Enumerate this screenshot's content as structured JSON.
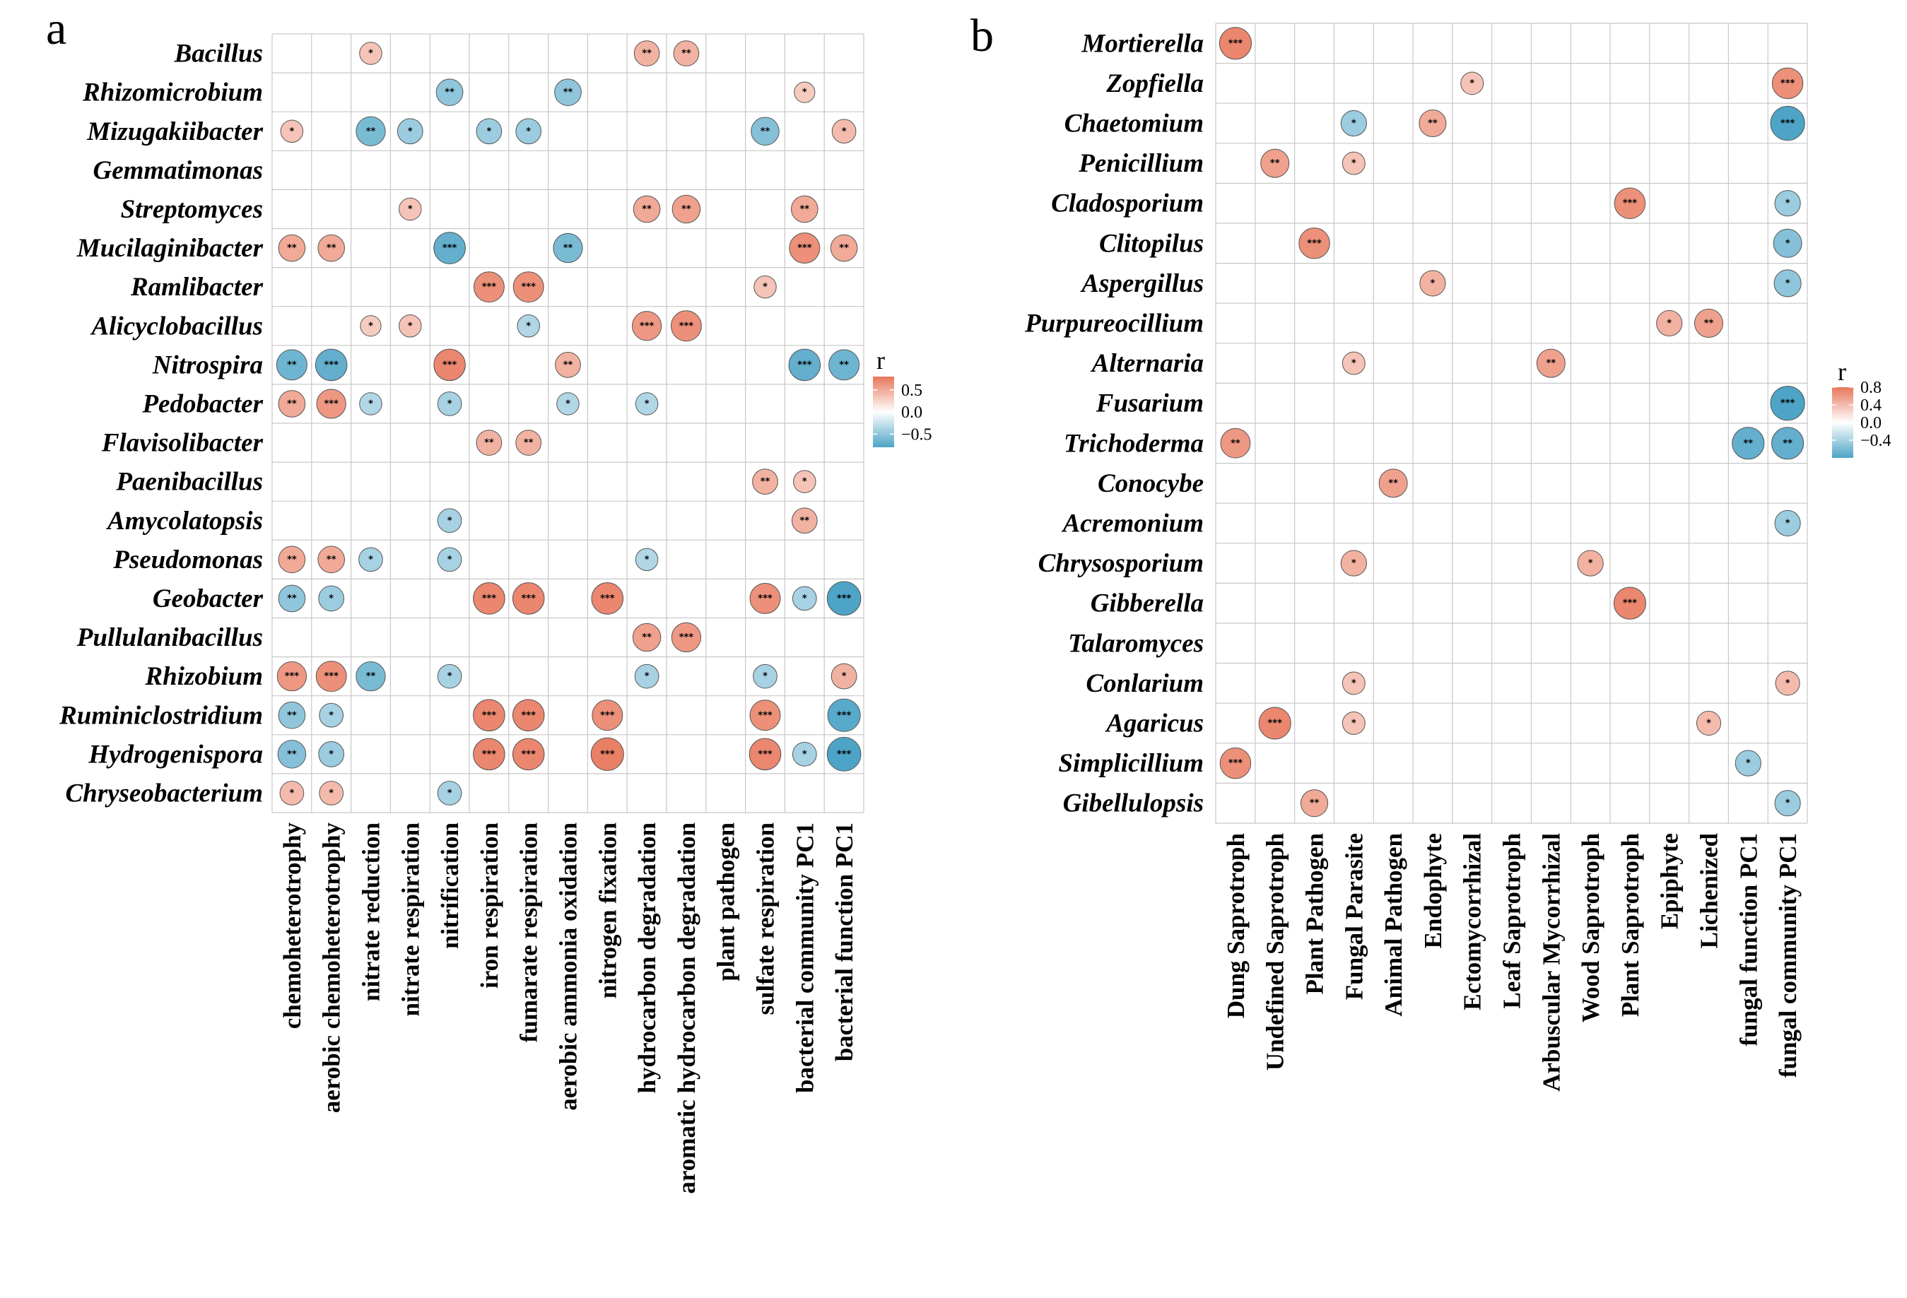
{
  "chart_data": [
    {
      "type": "heatmap",
      "panel": "a",
      "legend_title": "r",
      "color_scale": {
        "min": -0.8,
        "max": 0.8,
        "low": "#4da4c6",
        "mid": "#ffffff",
        "high": "#e8765a"
      },
      "legend_ticks": [
        {
          "value": 0.5,
          "label": "0.5"
        },
        {
          "value": 0.0,
          "label": "0.0"
        },
        {
          "value": -0.5,
          "label": "−0.5"
        }
      ],
      "rows": [
        "Bacillus",
        "Rhizomicrobium",
        "Mizugakiibacter",
        "Gemmatimonas",
        "Streptomyces",
        "Mucilaginibacter",
        "Ramlibacter",
        "Alicyclobacillus",
        "Nitrospira",
        "Pedobacter",
        "Flavisolibacter",
        "Paenibacillus",
        "Amycolatopsis",
        "Pseudomonas",
        "Geobacter",
        "Pullulanibacillus",
        "Rhizobium",
        "Ruminiclostridium",
        "Hydrogenispora",
        "Chryseobacterium"
      ],
      "columns": [
        "chemoheterotrophy",
        "aerobic chemoheterotrophy",
        "nitrate reduction",
        "nitrate respiration",
        "nitrification",
        "iron respiration",
        "fumarate respiration",
        "aerobic ammonia oxidation",
        "nitrogen fixation",
        "hydrocarbon degradation",
        "aromatic hydrocarbon degradation",
        "plant pathogen",
        "sulfate respiration",
        "bacterial community PC1",
        "bacterial function PC1"
      ],
      "cells": [
        {
          "row": 0,
          "col": 2,
          "r": 0.35,
          "sig": "*"
        },
        {
          "row": 0,
          "col": 9,
          "r": 0.45,
          "sig": "**"
        },
        {
          "row": 0,
          "col": 10,
          "r": 0.45,
          "sig": "**"
        },
        {
          "row": 1,
          "col": 4,
          "r": -0.5,
          "sig": "**"
        },
        {
          "row": 1,
          "col": 7,
          "r": -0.5,
          "sig": "**"
        },
        {
          "row": 1,
          "col": 13,
          "r": 0.3,
          "sig": "*"
        },
        {
          "row": 2,
          "col": 0,
          "r": 0.35,
          "sig": "*"
        },
        {
          "row": 2,
          "col": 2,
          "r": -0.6,
          "sig": "**"
        },
        {
          "row": 2,
          "col": 3,
          "r": -0.45,
          "sig": "*"
        },
        {
          "row": 2,
          "col": 5,
          "r": -0.45,
          "sig": "*"
        },
        {
          "row": 2,
          "col": 6,
          "r": -0.45,
          "sig": "*"
        },
        {
          "row": 2,
          "col": 12,
          "r": -0.55,
          "sig": "**"
        },
        {
          "row": 2,
          "col": 14,
          "r": 0.4,
          "sig": "*"
        },
        {
          "row": 4,
          "col": 3,
          "r": 0.35,
          "sig": "*"
        },
        {
          "row": 4,
          "col": 9,
          "r": 0.5,
          "sig": "**"
        },
        {
          "row": 4,
          "col": 10,
          "r": 0.55,
          "sig": "**"
        },
        {
          "row": 4,
          "col": 13,
          "r": 0.5,
          "sig": "**"
        },
        {
          "row": 5,
          "col": 0,
          "r": 0.5,
          "sig": "**"
        },
        {
          "row": 5,
          "col": 1,
          "r": 0.5,
          "sig": "**"
        },
        {
          "row": 5,
          "col": 4,
          "r": -0.7,
          "sig": "***"
        },
        {
          "row": 5,
          "col": 7,
          "r": -0.6,
          "sig": "**"
        },
        {
          "row": 5,
          "col": 13,
          "r": 0.65,
          "sig": "***"
        },
        {
          "row": 5,
          "col": 14,
          "r": 0.5,
          "sig": "**"
        },
        {
          "row": 6,
          "col": 5,
          "r": 0.65,
          "sig": "***"
        },
        {
          "row": 6,
          "col": 6,
          "r": 0.65,
          "sig": "***"
        },
        {
          "row": 6,
          "col": 12,
          "r": 0.35,
          "sig": "*"
        },
        {
          "row": 7,
          "col": 2,
          "r": 0.3,
          "sig": "*"
        },
        {
          "row": 7,
          "col": 3,
          "r": 0.35,
          "sig": "*"
        },
        {
          "row": 7,
          "col": 6,
          "r": -0.35,
          "sig": "*"
        },
        {
          "row": 7,
          "col": 9,
          "r": 0.6,
          "sig": "***"
        },
        {
          "row": 7,
          "col": 10,
          "r": 0.65,
          "sig": "***"
        },
        {
          "row": 8,
          "col": 0,
          "r": -0.65,
          "sig": "**"
        },
        {
          "row": 8,
          "col": 1,
          "r": -0.7,
          "sig": "***"
        },
        {
          "row": 8,
          "col": 4,
          "r": 0.7,
          "sig": "***"
        },
        {
          "row": 8,
          "col": 7,
          "r": 0.45,
          "sig": "**"
        },
        {
          "row": 8,
          "col": 13,
          "r": -0.7,
          "sig": "***"
        },
        {
          "row": 8,
          "col": 14,
          "r": -0.65,
          "sig": "**"
        },
        {
          "row": 9,
          "col": 0,
          "r": 0.5,
          "sig": "**"
        },
        {
          "row": 9,
          "col": 1,
          "r": 0.6,
          "sig": "***"
        },
        {
          "row": 9,
          "col": 2,
          "r": -0.35,
          "sig": "*"
        },
        {
          "row": 9,
          "col": 4,
          "r": -0.4,
          "sig": "*"
        },
        {
          "row": 9,
          "col": 7,
          "r": -0.35,
          "sig": "*"
        },
        {
          "row": 9,
          "col": 9,
          "r": -0.35,
          "sig": "*"
        },
        {
          "row": 10,
          "col": 5,
          "r": 0.45,
          "sig": "**"
        },
        {
          "row": 10,
          "col": 6,
          "r": 0.45,
          "sig": "**"
        },
        {
          "row": 11,
          "col": 12,
          "r": 0.45,
          "sig": "**"
        },
        {
          "row": 11,
          "col": 13,
          "r": 0.35,
          "sig": "*"
        },
        {
          "row": 12,
          "col": 4,
          "r": -0.4,
          "sig": "*"
        },
        {
          "row": 12,
          "col": 13,
          "r": 0.45,
          "sig": "**"
        },
        {
          "row": 13,
          "col": 0,
          "r": 0.5,
          "sig": "**"
        },
        {
          "row": 13,
          "col": 1,
          "r": 0.5,
          "sig": "**"
        },
        {
          "row": 13,
          "col": 2,
          "r": -0.4,
          "sig": "*"
        },
        {
          "row": 13,
          "col": 4,
          "r": -0.4,
          "sig": "*"
        },
        {
          "row": 13,
          "col": 9,
          "r": -0.35,
          "sig": "*"
        },
        {
          "row": 14,
          "col": 0,
          "r": -0.5,
          "sig": "**"
        },
        {
          "row": 14,
          "col": 1,
          "r": -0.45,
          "sig": "*"
        },
        {
          "row": 14,
          "col": 5,
          "r": 0.7,
          "sig": "***"
        },
        {
          "row": 14,
          "col": 6,
          "r": 0.7,
          "sig": "***"
        },
        {
          "row": 14,
          "col": 8,
          "r": 0.7,
          "sig": "***"
        },
        {
          "row": 14,
          "col": 12,
          "r": 0.65,
          "sig": "***"
        },
        {
          "row": 14,
          "col": 13,
          "r": -0.4,
          "sig": "*"
        },
        {
          "row": 14,
          "col": 14,
          "r": -0.8,
          "sig": "***"
        },
        {
          "row": 15,
          "col": 9,
          "r": 0.55,
          "sig": "**"
        },
        {
          "row": 15,
          "col": 10,
          "r": 0.6,
          "sig": "***"
        },
        {
          "row": 16,
          "col": 0,
          "r": 0.6,
          "sig": "***"
        },
        {
          "row": 16,
          "col": 1,
          "r": 0.65,
          "sig": "***"
        },
        {
          "row": 16,
          "col": 2,
          "r": -0.6,
          "sig": "**"
        },
        {
          "row": 16,
          "col": 4,
          "r": -0.4,
          "sig": "*"
        },
        {
          "row": 16,
          "col": 9,
          "r": -0.4,
          "sig": "*"
        },
        {
          "row": 16,
          "col": 12,
          "r": -0.4,
          "sig": "*"
        },
        {
          "row": 16,
          "col": 14,
          "r": 0.45,
          "sig": "*"
        },
        {
          "row": 17,
          "col": 0,
          "r": -0.5,
          "sig": "**"
        },
        {
          "row": 17,
          "col": 1,
          "r": -0.4,
          "sig": "*"
        },
        {
          "row": 17,
          "col": 5,
          "r": 0.7,
          "sig": "***"
        },
        {
          "row": 17,
          "col": 6,
          "r": 0.7,
          "sig": "***"
        },
        {
          "row": 17,
          "col": 8,
          "r": 0.65,
          "sig": "***"
        },
        {
          "row": 17,
          "col": 12,
          "r": 0.65,
          "sig": "***"
        },
        {
          "row": 17,
          "col": 14,
          "r": -0.75,
          "sig": "***"
        },
        {
          "row": 18,
          "col": 0,
          "r": -0.55,
          "sig": "**"
        },
        {
          "row": 18,
          "col": 1,
          "r": -0.45,
          "sig": "*"
        },
        {
          "row": 18,
          "col": 5,
          "r": 0.7,
          "sig": "***"
        },
        {
          "row": 18,
          "col": 6,
          "r": 0.7,
          "sig": "***"
        },
        {
          "row": 18,
          "col": 8,
          "r": 0.75,
          "sig": "***"
        },
        {
          "row": 18,
          "col": 12,
          "r": 0.7,
          "sig": "***"
        },
        {
          "row": 18,
          "col": 13,
          "r": -0.4,
          "sig": "*"
        },
        {
          "row": 18,
          "col": 14,
          "r": -0.8,
          "sig": "***"
        },
        {
          "row": 19,
          "col": 0,
          "r": 0.4,
          "sig": "*"
        },
        {
          "row": 19,
          "col": 1,
          "r": 0.4,
          "sig": "*"
        },
        {
          "row": 19,
          "col": 4,
          "r": -0.4,
          "sig": "*"
        }
      ]
    },
    {
      "type": "heatmap",
      "panel": "b",
      "legend_title": "r",
      "color_scale": {
        "min": -0.8,
        "max": 0.8,
        "low": "#4da4c6",
        "mid": "#ffffff",
        "high": "#e8765a"
      },
      "legend_ticks": [
        {
          "value": 0.8,
          "label": "0.8"
        },
        {
          "value": 0.4,
          "label": "0.4"
        },
        {
          "value": 0.0,
          "label": "0.0"
        },
        {
          "value": -0.4,
          "label": "−0.4"
        }
      ],
      "rows": [
        "Mortierella",
        "Zopfiella",
        "Chaetomium",
        "Penicillium",
        "Cladosporium",
        "Clitopilus",
        "Aspergillus",
        "Purpureocillium",
        "Alternaria",
        "Fusarium",
        "Trichoderma",
        "Conocybe",
        "Acremonium",
        "Chrysosporium",
        "Gibberella",
        "Talaromyces",
        "Conlarium",
        "Agaricus",
        "Simplicillium",
        "Gibellulopsis"
      ],
      "columns": [
        "Dung Saprotroph",
        "Undefined Saprotroph",
        "Plant Pathogen",
        "Fungal Parasite",
        "Animal Pathogen",
        "Endophyte",
        "Ectomycorrhizal",
        "Leaf Saprotroph",
        "Arbuscular Mycorrhizal",
        "Wood Saprotroph",
        "Plant Saprotroph",
        "Epiphyte",
        "Lichenized",
        "fungal function PC1",
        "fungal community PC1"
      ],
      "cells": [
        {
          "row": 0,
          "col": 0,
          "r": 0.7,
          "sig": "***"
        },
        {
          "row": 1,
          "col": 6,
          "r": 0.35,
          "sig": "*"
        },
        {
          "row": 1,
          "col": 14,
          "r": 0.65,
          "sig": "***"
        },
        {
          "row": 2,
          "col": 3,
          "r": -0.45,
          "sig": "*"
        },
        {
          "row": 2,
          "col": 5,
          "r": 0.5,
          "sig": "**"
        },
        {
          "row": 2,
          "col": 14,
          "r": -0.8,
          "sig": "***"
        },
        {
          "row": 3,
          "col": 1,
          "r": 0.55,
          "sig": "**"
        },
        {
          "row": 3,
          "col": 3,
          "r": 0.35,
          "sig": "*"
        },
        {
          "row": 4,
          "col": 10,
          "r": 0.65,
          "sig": "***"
        },
        {
          "row": 4,
          "col": 14,
          "r": -0.45,
          "sig": "*"
        },
        {
          "row": 5,
          "col": 2,
          "r": 0.65,
          "sig": "***"
        },
        {
          "row": 5,
          "col": 14,
          "r": -0.55,
          "sig": "*"
        },
        {
          "row": 6,
          "col": 5,
          "r": 0.45,
          "sig": "*"
        },
        {
          "row": 6,
          "col": 14,
          "r": -0.5,
          "sig": "*"
        },
        {
          "row": 7,
          "col": 11,
          "r": 0.45,
          "sig": "*"
        },
        {
          "row": 7,
          "col": 12,
          "r": 0.55,
          "sig": "**"
        },
        {
          "row": 8,
          "col": 3,
          "r": 0.35,
          "sig": "*"
        },
        {
          "row": 8,
          "col": 8,
          "r": 0.55,
          "sig": "**"
        },
        {
          "row": 9,
          "col": 14,
          "r": -0.8,
          "sig": "***"
        },
        {
          "row": 10,
          "col": 0,
          "r": 0.6,
          "sig": "**"
        },
        {
          "row": 10,
          "col": 13,
          "r": -0.7,
          "sig": "**"
        },
        {
          "row": 10,
          "col": 14,
          "r": -0.7,
          "sig": "**"
        },
        {
          "row": 11,
          "col": 4,
          "r": 0.55,
          "sig": "**"
        },
        {
          "row": 12,
          "col": 14,
          "r": -0.45,
          "sig": "*"
        },
        {
          "row": 13,
          "col": 3,
          "r": 0.45,
          "sig": "*"
        },
        {
          "row": 13,
          "col": 9,
          "r": 0.45,
          "sig": "*"
        },
        {
          "row": 14,
          "col": 10,
          "r": 0.7,
          "sig": "***"
        },
        {
          "row": 16,
          "col": 3,
          "r": 0.35,
          "sig": "*"
        },
        {
          "row": 16,
          "col": 14,
          "r": 0.4,
          "sig": "*"
        },
        {
          "row": 17,
          "col": 1,
          "r": 0.7,
          "sig": "***"
        },
        {
          "row": 17,
          "col": 3,
          "r": 0.35,
          "sig": "*"
        },
        {
          "row": 17,
          "col": 12,
          "r": 0.4,
          "sig": "*"
        },
        {
          "row": 18,
          "col": 0,
          "r": 0.65,
          "sig": "***"
        },
        {
          "row": 18,
          "col": 13,
          "r": -0.45,
          "sig": "*"
        },
        {
          "row": 19,
          "col": 2,
          "r": 0.5,
          "sig": "**"
        },
        {
          "row": 19,
          "col": 14,
          "r": -0.45,
          "sig": "*"
        }
      ]
    }
  ]
}
